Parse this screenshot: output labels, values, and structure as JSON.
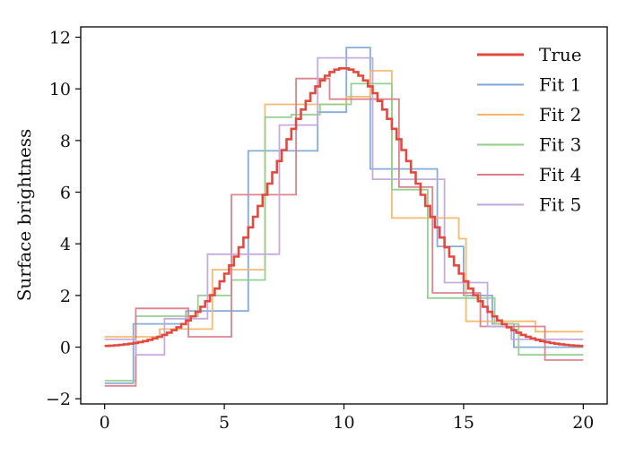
{
  "chart_data": {
    "type": "line",
    "title": "",
    "xlabel": "",
    "ylabel": "Surface brightness",
    "xlim": [
      -1,
      21
    ],
    "ylim": [
      -2.2,
      12.4
    ],
    "xticks": [
      "0",
      "5",
      "10",
      "15",
      "20"
    ],
    "yticks": [
      "−2",
      "0",
      "2",
      "4",
      "6",
      "8",
      "10",
      "12"
    ],
    "xtick_values": [
      0,
      5,
      10,
      15,
      20
    ],
    "ytick_values": [
      -2,
      0,
      2,
      4,
      6,
      8,
      10,
      12
    ],
    "grid": false,
    "legend_position": "top-right",
    "true_curve": {
      "name": "True",
      "color": "#e24a40",
      "kind": "gaussian-step",
      "amplitude": 10.8,
      "center": 10.0,
      "sigma": 3.0,
      "x_start": 0,
      "x_end": 20,
      "step": 0.2
    },
    "series": [
      {
        "name": "Fit 1",
        "color": "#7fa8d6",
        "edges": [
          0,
          1.2,
          3.4,
          6.0,
          7.6,
          8.9,
          10.1,
          11.1,
          12.5,
          13.9,
          15.0,
          16.2,
          17.1,
          18.3,
          20
        ],
        "values": [
          -1.4,
          0.9,
          1.4,
          7.6,
          7.6,
          9.1,
          11.6,
          6.9,
          6.9,
          3.9,
          2.0,
          0.9,
          0.0,
          0.0
        ]
      },
      {
        "name": "Fit 2",
        "color": "#f6b66c",
        "edges": [
          0,
          1.2,
          2.3,
          4.5,
          6.7,
          8.9,
          10.1,
          11.1,
          12.0,
          13.4,
          14.8,
          15.1,
          17.3,
          18.0,
          20
        ],
        "values": [
          0.4,
          0.4,
          0.7,
          3.0,
          9.4,
          9.4,
          9.7,
          10.7,
          5.0,
          5.0,
          4.2,
          1.0,
          1.0,
          0.6
        ]
      },
      {
        "name": "Fit 3",
        "color": "#8fcf8a",
        "edges": [
          0,
          1.3,
          2.3,
          3.9,
          5.3,
          6.7,
          7.8,
          9.0,
          10.3,
          11.2,
          12.0,
          13.5,
          16.3,
          17.3,
          20
        ],
        "values": [
          -1.3,
          1.2,
          1.2,
          2.0,
          2.6,
          8.9,
          9.0,
          9.4,
          10.2,
          10.2,
          6.1,
          1.9,
          0.9,
          -0.3
        ]
      },
      {
        "name": "Fit 4",
        "color": "#dc7d87",
        "edges": [
          0,
          1.3,
          3.5,
          5.3,
          6.9,
          8.0,
          9.4,
          11.0,
          12.3,
          13.7,
          15.7,
          18.4,
          20
        ],
        "values": [
          -1.5,
          1.5,
          0.4,
          5.9,
          5.9,
          10.4,
          9.6,
          9.6,
          6.2,
          2.1,
          0.8,
          -0.5
        ]
      },
      {
        "name": "Fit 5",
        "color": "#c4a6de",
        "edges": [
          0,
          1.3,
          2.5,
          4.3,
          7.3,
          8.9,
          10.4,
          11.2,
          12.6,
          14.2,
          16.0,
          17.0,
          20
        ],
        "values": [
          0.3,
          -0.3,
          1.1,
          3.6,
          8.6,
          11.2,
          11.2,
          6.5,
          6.5,
          2.5,
          0.8,
          0.3
        ]
      }
    ]
  }
}
